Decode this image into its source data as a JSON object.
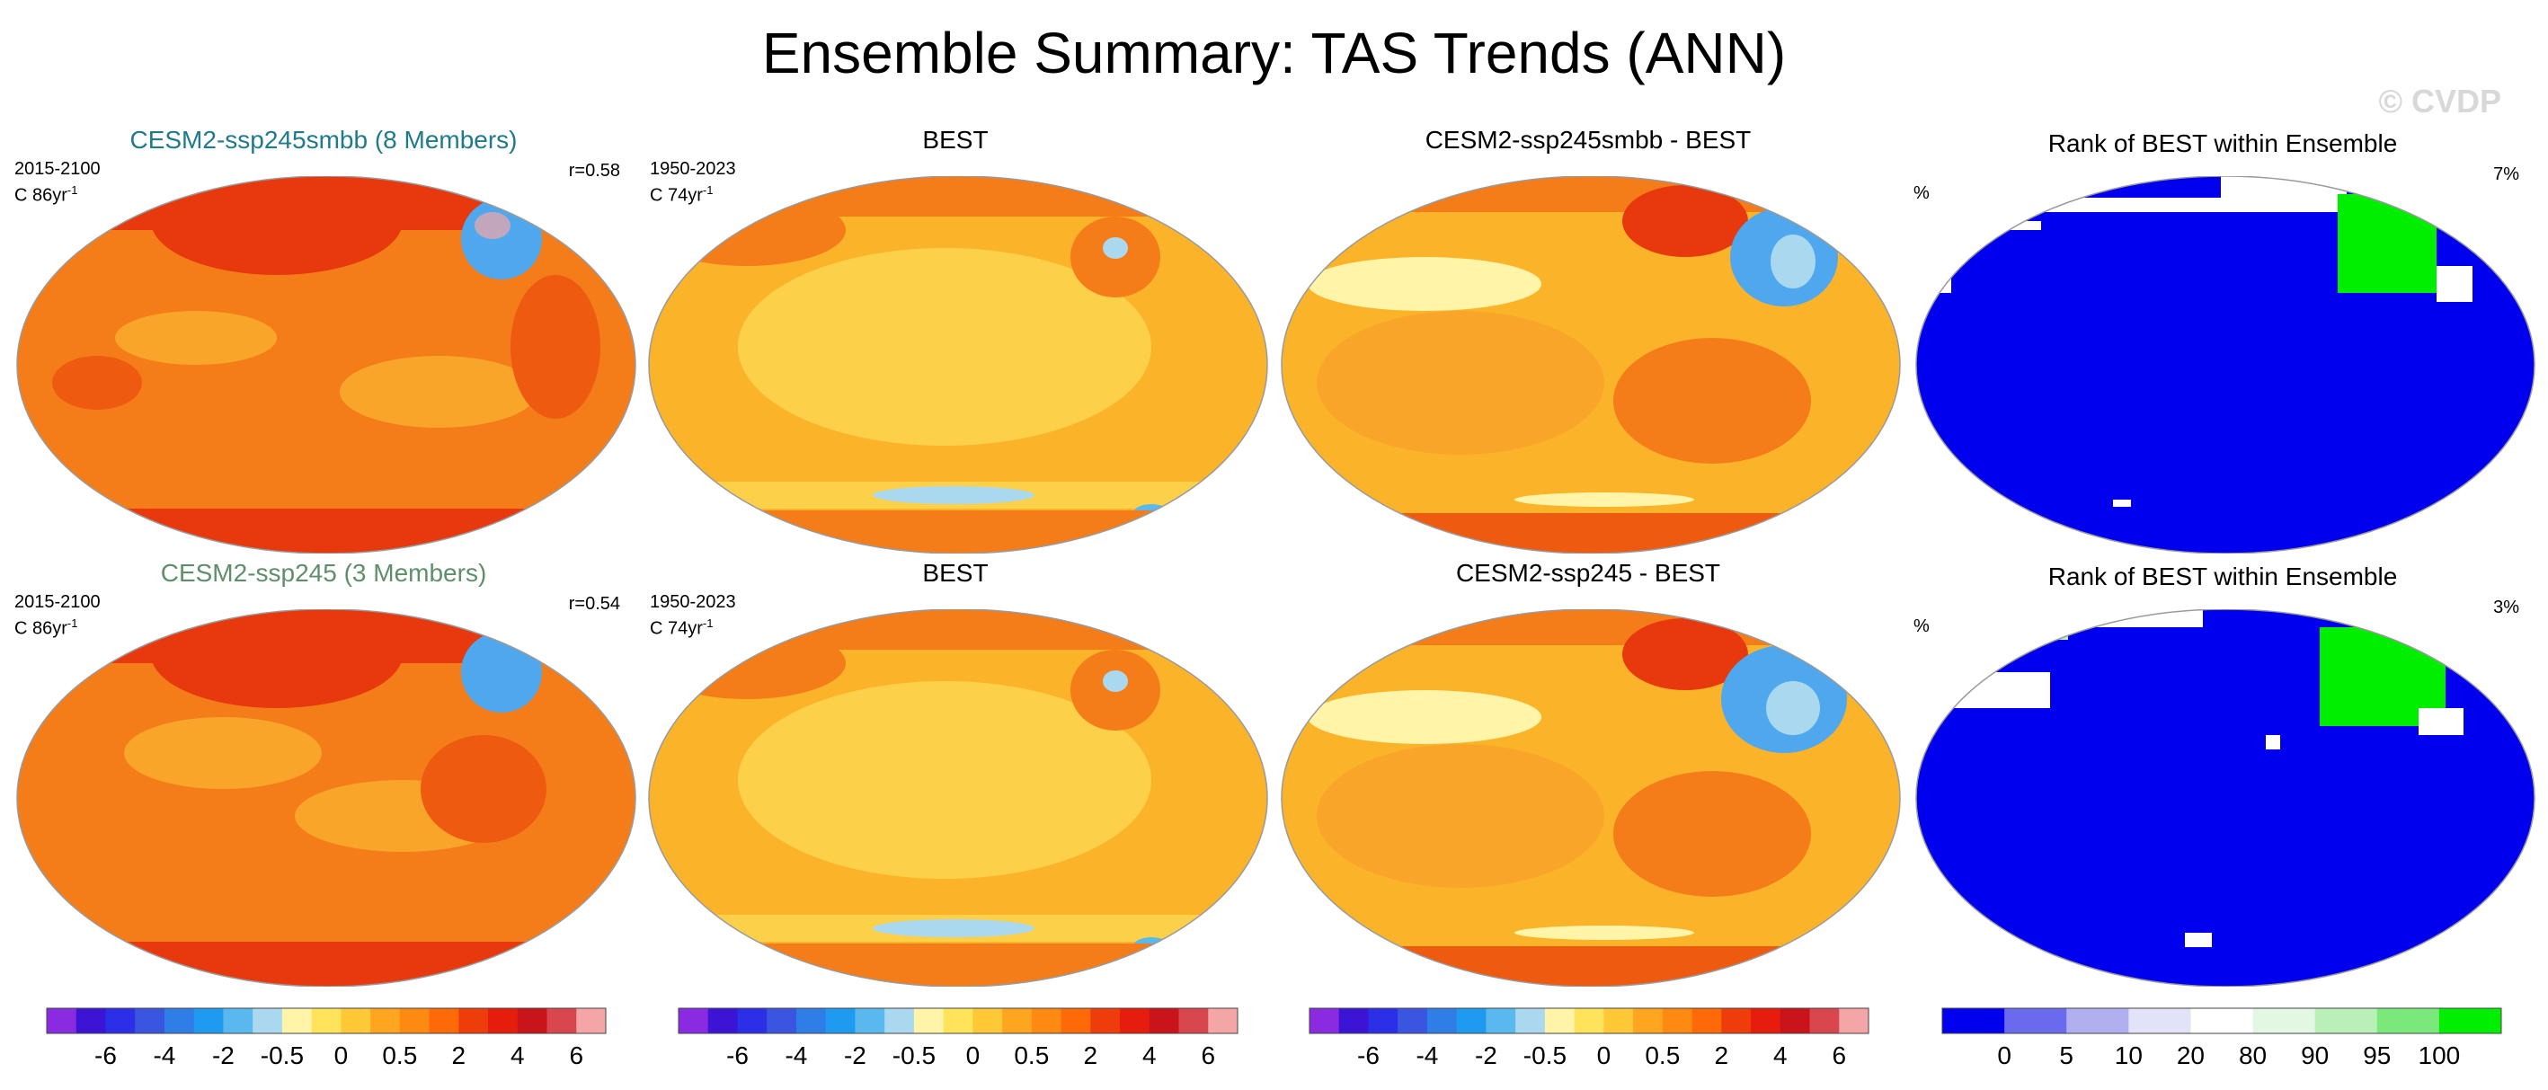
{
  "page": {
    "title": "Ensemble Summary: TAS Trends (ANN)",
    "watermark": "© CVDP"
  },
  "rows": [
    {
      "ensemble": {
        "title": "CESM2-ssp245smbb (8 Members)",
        "period": "2015-2100",
        "units_prefix": "C 86yr",
        "units_exp": "-1",
        "corr": "r=0.58"
      },
      "obs": {
        "title": "BEST",
        "period": "1950-2023",
        "units_prefix": "C 74yr",
        "units_exp": "-1"
      },
      "diff": {
        "title": "CESM2-ssp245smbb - BEST"
      },
      "rank": {
        "title": "Rank of BEST within Ensemble",
        "unit": "%",
        "pct": "7%"
      }
    },
    {
      "ensemble": {
        "title": "CESM2-ssp245 (3 Members)",
        "period": "2015-2100",
        "units_prefix": "C 86yr",
        "units_exp": "-1",
        "corr": "r=0.54"
      },
      "obs": {
        "title": "BEST",
        "period": "1950-2023",
        "units_prefix": "C 74yr",
        "units_exp": "-1"
      },
      "diff": {
        "title": "CESM2-ssp245 - BEST"
      },
      "rank": {
        "title": "Rank of BEST within Ensemble",
        "unit": "%",
        "pct": "3%"
      }
    }
  ],
  "colorbars": {
    "trend": {
      "colors": [
        "#8a2be2",
        "#3b14d6",
        "#2b2fe8",
        "#3a56e0",
        "#2f7de6",
        "#1e9bf0",
        "#59b8ee",
        "#a9d8ef",
        "#fff4a8",
        "#ffe35a",
        "#ffc836",
        "#ffa51f",
        "#ff8a12",
        "#ff6a08",
        "#ee3d0a",
        "#e61c0c",
        "#c8141a",
        "#d8464e",
        "#f4a6a6"
      ],
      "labels": [
        "-6",
        "-4",
        "-2",
        "-0.5",
        "0",
        "0.5",
        "2",
        "4",
        "6"
      ]
    },
    "rank": {
      "colors": [
        "#0000ee",
        "#6a6aee",
        "#b0b0f0",
        "#e2e2f8",
        "#ffffff",
        "#e2f8e2",
        "#b8f0b8",
        "#7ae87a",
        "#00ee00"
      ],
      "labels": [
        "0",
        "5",
        "10",
        "20",
        "80",
        "90",
        "95",
        "100"
      ]
    }
  },
  "chart_data": [
    {
      "type": "heatmap",
      "title": "Ensemble Summary: TAS Trends (ANN)",
      "variable": "TAS trends",
      "panels": [
        "CESM2-ssp245smbb (8 Members)",
        "BEST",
        "CESM2-ssp245smbb - BEST",
        "Rank of BEST within Ensemble",
        "CESM2-ssp245 (3 Members)",
        "BEST",
        "CESM2-ssp245 - BEST",
        "Rank of BEST within Ensemble"
      ],
      "trend_colorbar_levels": [
        -6,
        -4,
        -2,
        -0.5,
        0,
        0.5,
        2,
        4,
        6
      ],
      "rank_colorbar_levels": [
        0,
        5,
        10,
        20,
        80,
        90,
        95,
        100
      ],
      "pattern_correlations": [
        0.58,
        0.54
      ],
      "rank_percent_summary": [
        "7%",
        "3%"
      ]
    }
  ]
}
